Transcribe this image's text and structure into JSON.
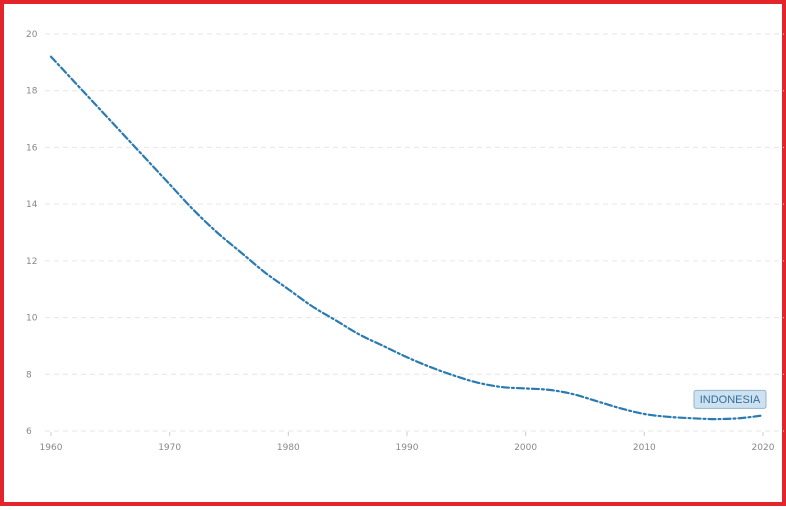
{
  "colors": {
    "frame": "#e3242b",
    "line": "#2b7bb0",
    "grid": "#e6e6e6",
    "tick_text": "#888888",
    "label_fill": "#cfe1ee",
    "label_stroke": "#8fb6d2",
    "label_text": "#2d6fa0"
  },
  "chart_data": {
    "type": "line",
    "title": "",
    "xlabel": "",
    "ylabel": "",
    "xlim": [
      1960,
      2020
    ],
    "ylim": [
      6,
      20
    ],
    "grid": true,
    "line_style": "dash-dot",
    "x_ticks": [
      "1960",
      "1970",
      "1980",
      "1990",
      "2000",
      "2010",
      "2020"
    ],
    "y_ticks": [
      "6",
      "8",
      "10",
      "12",
      "14",
      "16",
      "18",
      "20"
    ],
    "series": [
      {
        "name": "INDONESIA",
        "x": [
          1960,
          1962,
          1964,
          1966,
          1968,
          1970,
          1972,
          1974,
          1976,
          1978,
          1980,
          1982,
          1984,
          1986,
          1988,
          1990,
          1992,
          1994,
          1996,
          1998,
          2000,
          2002,
          2004,
          2006,
          2008,
          2010,
          2012,
          2014,
          2016,
          2018,
          2020
        ],
        "y": [
          19.2,
          18.3,
          17.4,
          16.5,
          15.6,
          14.7,
          13.8,
          13.0,
          12.3,
          11.6,
          11.0,
          10.4,
          9.9,
          9.4,
          9.0,
          8.6,
          8.25,
          7.95,
          7.7,
          7.55,
          7.5,
          7.45,
          7.3,
          7.05,
          6.8,
          6.6,
          6.5,
          6.45,
          6.42,
          6.45,
          6.55
        ]
      }
    ]
  }
}
